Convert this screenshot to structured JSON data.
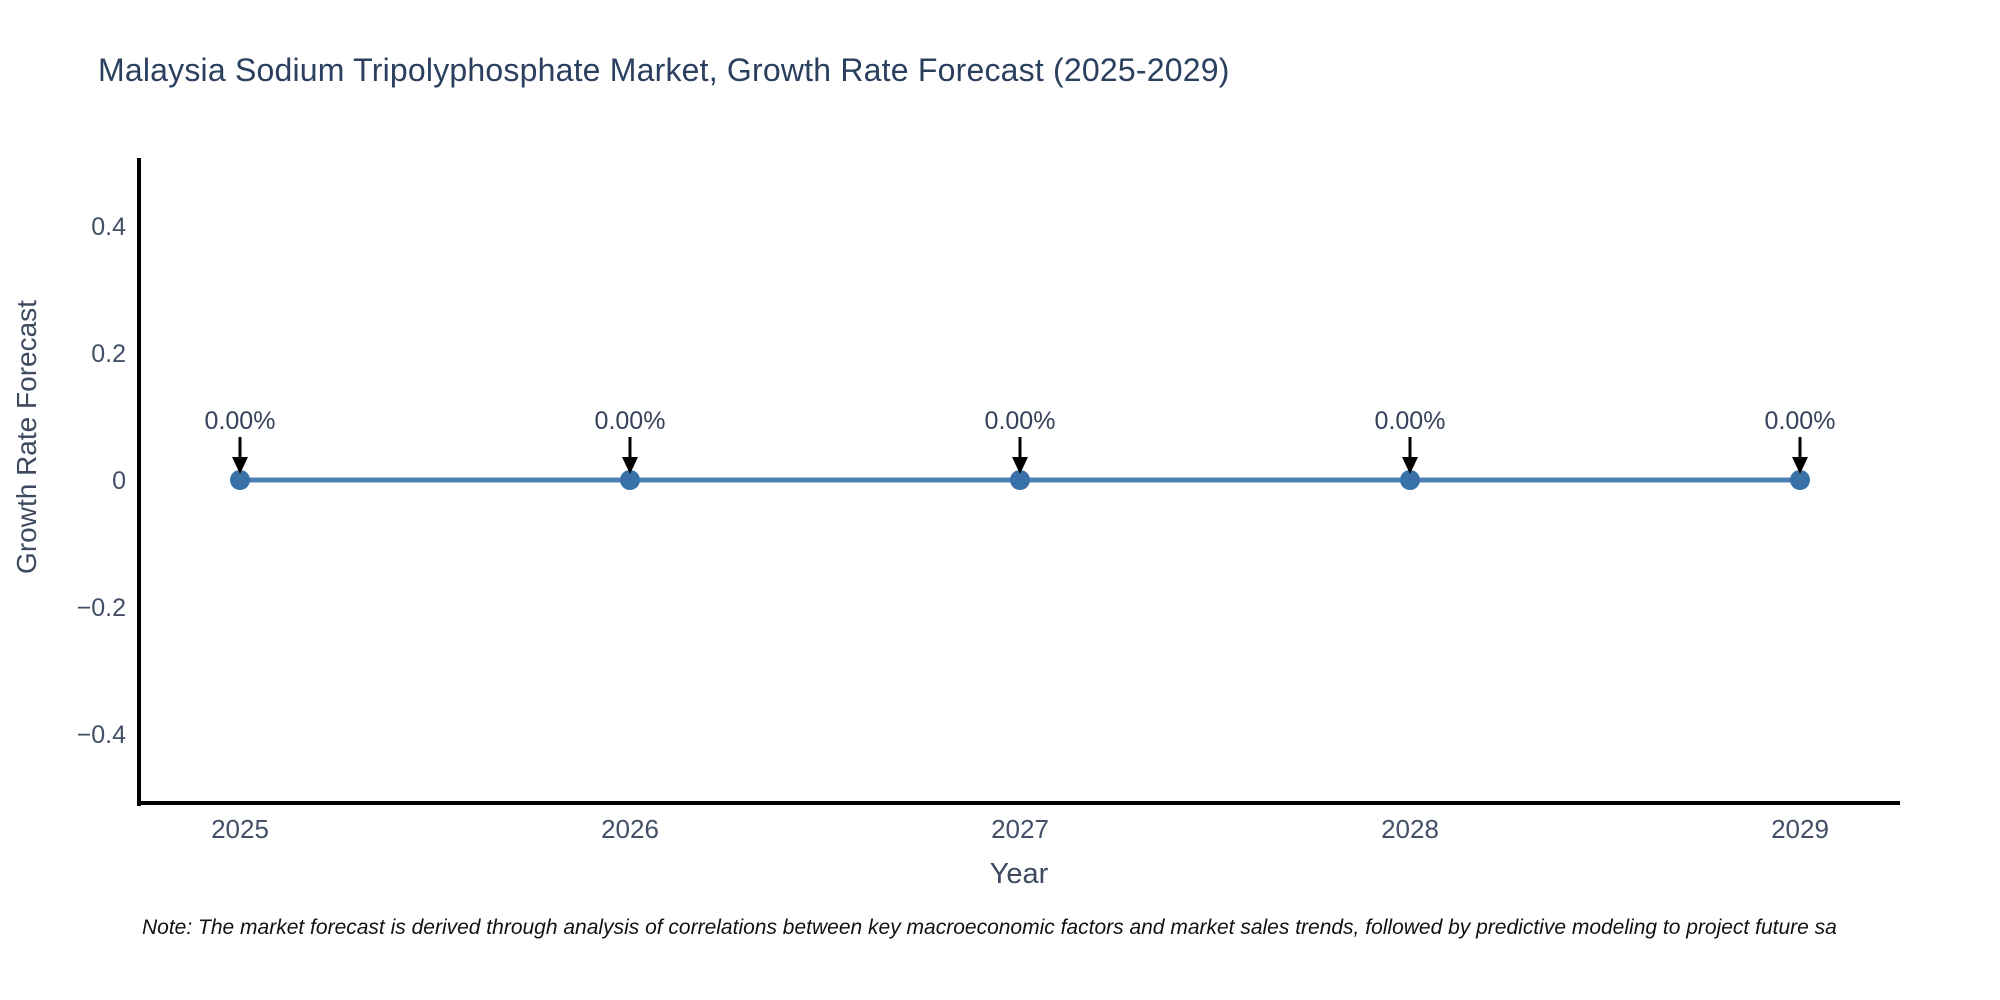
{
  "figure": {
    "note": "Note: The market forecast is derived through analysis of correlations between key macroeconomic factors and market sales trends, followed by predictive modeling to project future sa"
  },
  "chart_data": {
    "type": "line",
    "title": "Malaysia Sodium Tripolyphosphate Market, Growth Rate Forecast (2025-2029)",
    "xlabel": "Year",
    "ylabel": "Growth Rate Forecast",
    "categories": [
      "2025",
      "2026",
      "2027",
      "2028",
      "2029"
    ],
    "series": [
      {
        "name": "Growth Rate Forecast",
        "values": [
          0,
          0,
          0,
          0,
          0
        ]
      }
    ],
    "point_labels": [
      "0.00%",
      "0.00%",
      "0.00%",
      "0.00%",
      "0.00%"
    ],
    "yticks": {
      "values": [
        0.4,
        0.2,
        0,
        -0.2,
        -0.4
      ],
      "labels": [
        "0.4",
        "0.2",
        "0",
        "−0.2",
        "−0.4"
      ]
    },
    "ylim": [
      -0.5,
      0.5
    ],
    "grid": false,
    "legend": "none",
    "marker": "circle",
    "annotation_arrow": "down",
    "colors": {
      "line": "#4d80b2",
      "marker": "#3871a8",
      "arrow": "#000000",
      "axis": "#000000",
      "title_text": "#2b3f5e",
      "tick_text": "#424f66",
      "note_text": "#111111",
      "background": "#ffffff"
    }
  }
}
